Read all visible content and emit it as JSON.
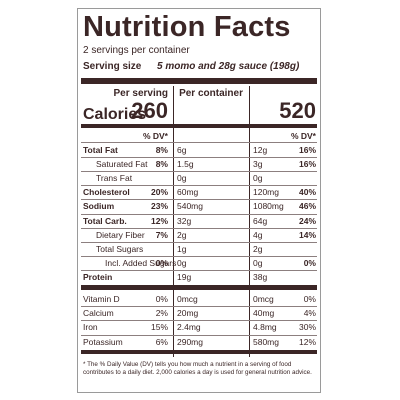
{
  "header": {
    "title": "Nutrition Facts",
    "servings": "2 servings per container",
    "serving_size_label": "Serving size",
    "serving_size": "5 momo and 28g sauce (198g)"
  },
  "calories": {
    "label": "Calories",
    "per_serving_label": "Per serving",
    "per_container_label": "Per container",
    "per_serving": 260,
    "per_container": 520,
    "dv_header": "% DV*"
  },
  "nutrients": [
    {
      "name": "Total Fat",
      "serving": "6g",
      "serving_dv": "8%",
      "container": "12g",
      "container_dv": "16%"
    },
    {
      "name": "Saturated Fat",
      "serving": "1.5g",
      "serving_dv": "8%",
      "container": "3g",
      "container_dv": "16%"
    },
    {
      "name": "Trans Fat",
      "serving": "0g",
      "container": "0g"
    },
    {
      "name": "Cholesterol",
      "serving": "60mg",
      "serving_dv": "20%",
      "container": "120mg",
      "container_dv": "40%"
    },
    {
      "name": "Sodium",
      "serving": "540mg",
      "serving_dv": "23%",
      "container": "1080mg",
      "container_dv": "46%"
    },
    {
      "name": "Total Carb.",
      "serving": "32g",
      "serving_dv": "12%",
      "container": "64g",
      "container_dv": "24%"
    },
    {
      "name": "Dietary Fiber",
      "serving": "2g",
      "serving_dv": "7%",
      "container": "4g",
      "container_dv": "14%"
    },
    {
      "name": "Total Sugars",
      "serving": "1g",
      "container": "2g"
    },
    {
      "name": "Incl. Added Sugars",
      "serving": "0g",
      "serving_dv": "0%",
      "container": "0g",
      "container_dv": "0%"
    },
    {
      "name": "Protein",
      "serving": "19g",
      "container": "38g"
    }
  ],
  "vitamins": [
    {
      "name": "Vitamin D",
      "serving": "0mcg",
      "serving_dv": "0%",
      "container": "0mcg",
      "container_dv": "0%"
    },
    {
      "name": "Calcium",
      "serving": "20mg",
      "serving_dv": "2%",
      "container": "40mg",
      "container_dv": "4%"
    },
    {
      "name": "Iron",
      "serving": "2.4mg",
      "serving_dv": "15%",
      "container": "4.8mg",
      "container_dv": "30%"
    },
    {
      "name": "Potassium",
      "serving": "290mg",
      "serving_dv": "6%",
      "container": "580mg",
      "container_dv": "12%"
    }
  ],
  "footnote": "* The % Daily Value (DV) tells you how much a nutrient in a serving of food contributes to a daily diet. 2,000 calories a day is used for general nutrition advice."
}
